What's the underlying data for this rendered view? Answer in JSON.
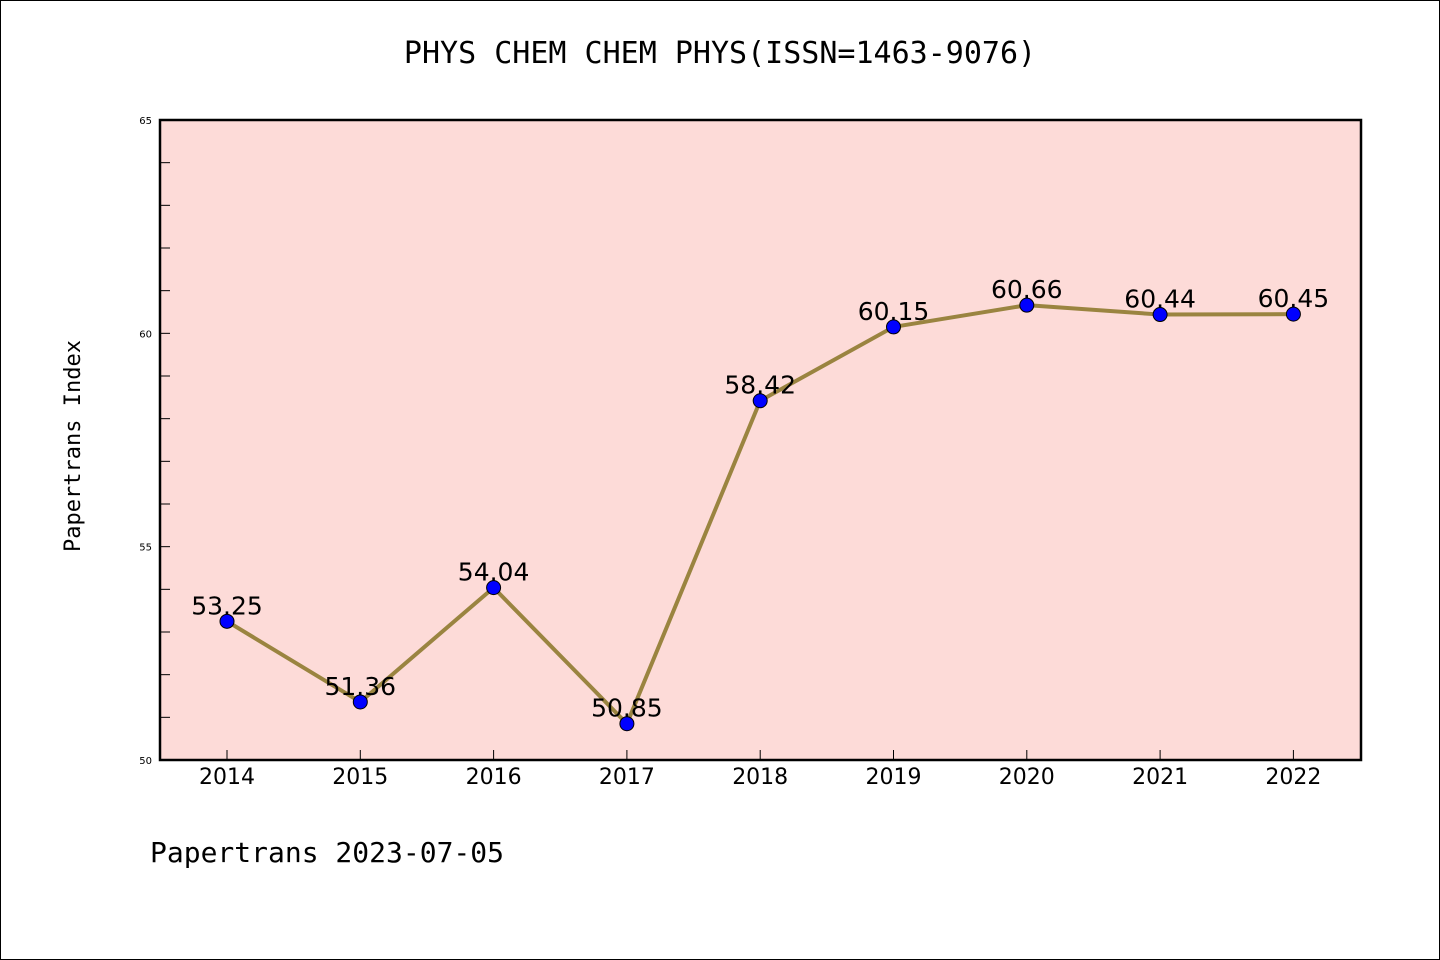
{
  "title": "PHYS CHEM CHEM PHYS(ISSN=1463-9076)",
  "footer": "Papertrans 2023-07-05",
  "colors": {
    "plot_background": "#fddbd8",
    "line": "#9a8440",
    "marker": "#0000ff",
    "axis": "#000000"
  },
  "chart_data": {
    "type": "line",
    "title": "PHYS CHEM CHEM PHYS(ISSN=1463-9076)",
    "xlabel": "",
    "ylabel": "Papertrans Index",
    "categories": [
      "2014",
      "2015",
      "2016",
      "2017",
      "2018",
      "2019",
      "2020",
      "2021",
      "2022"
    ],
    "series": [
      {
        "values": [
          53.25,
          51.36,
          54.04,
          50.85,
          58.42,
          60.15,
          60.66,
          60.44,
          60.45
        ],
        "data_labels": [
          "53.25",
          "51.36",
          "54.04",
          "50.85",
          "58.42",
          "60.15",
          "60.66",
          "60.44",
          "60.45"
        ]
      }
    ],
    "ylim": [
      50,
      65
    ],
    "yticks": [
      50,
      55,
      60,
      65
    ],
    "yticks_labels": [
      "50",
      "55",
      "60",
      "65"
    ],
    "grid": false,
    "legend": "none"
  }
}
